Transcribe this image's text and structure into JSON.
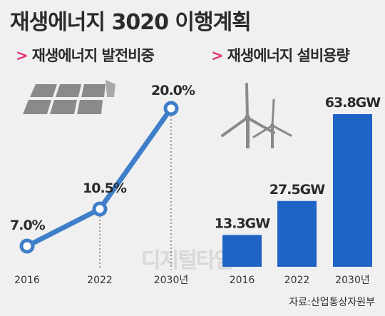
{
  "title": "재생에너지 3020 이행계획",
  "left_panel": {
    "arrow": ">",
    "subtitle": "재생에너지 발전비중"
  },
  "right_panel": {
    "arrow": ">",
    "subtitle": "재생에너지 설비용량"
  },
  "source": "자료:산업통상자원부",
  "watermark": "디지털타임스",
  "colors": {
    "line": "#3f7fc9",
    "bar": "#1f63c5",
    "accent": "#e0357b",
    "icon": "#8a8a8a"
  },
  "chart_data": [
    {
      "type": "line",
      "categories": [
        "2016",
        "2022",
        "2030년"
      ],
      "values": [
        7.0,
        10.5,
        20.0
      ],
      "data_labels": [
        "7.0%",
        "10.5%",
        "20.0%"
      ],
      "unit": "%"
    },
    {
      "type": "bar",
      "categories": [
        "2016",
        "2022",
        "2030년"
      ],
      "values": [
        13.3,
        27.5,
        63.8
      ],
      "data_labels": [
        "13.3GW",
        "27.5GW",
        "63.8GW"
      ],
      "unit": "GW"
    }
  ]
}
